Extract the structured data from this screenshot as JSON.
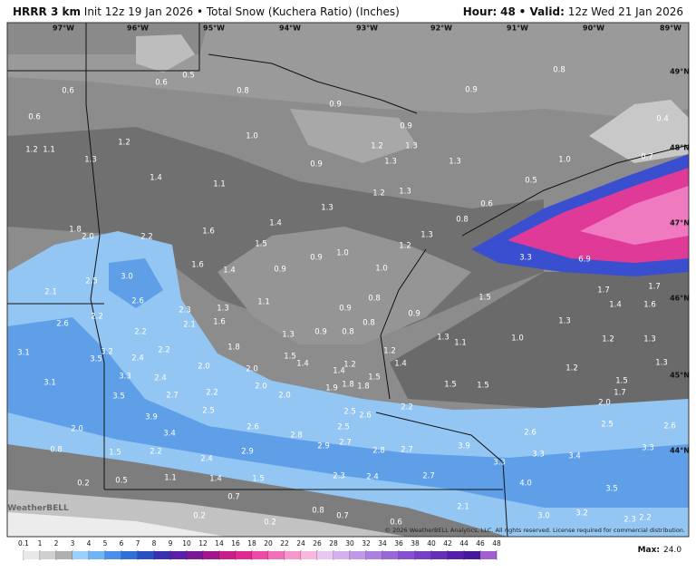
{
  "header": {
    "model": "HRRR 3 km",
    "init": "Init 12z 19 Jan 2026",
    "product": "• Total Snow (Kuchera Ratio) (Inches)",
    "hour_label": "Hour:",
    "hour": "48",
    "valid_label": "• Valid:",
    "valid": "12z Wed 21 Jan 2026"
  },
  "map": {
    "longitudes": [
      "97°W",
      "96°W",
      "95°W",
      "94°W",
      "93°W",
      "92°W",
      "91°W",
      "90°W",
      "89°W"
    ],
    "latitudes": [
      "49°N",
      "48°N",
      "47°N",
      "46°N",
      "45°N",
      "44°N"
    ],
    "labels": [
      "0.6",
      "0.6",
      "0.5",
      "0.8",
      "0.9",
      "0.9",
      "0.8",
      "0.4",
      "0.6",
      "0.9",
      "1.0",
      "1.2",
      "1.1",
      "1.2",
      "1.3",
      "1.2",
      "1.3",
      "1.0",
      "0.7",
      "0.9",
      "1.3",
      "1.3",
      "1.4",
      "1.1",
      "0.5",
      "1.2",
      "1.3",
      "1.3",
      "0.6",
      "0.8",
      "1.4",
      "1.8",
      "2.0",
      "2.2",
      "1.6",
      "1.5",
      "1.3",
      "1.2",
      "0.9",
      "1.0",
      "3.3",
      "6.9",
      "1.6",
      "1.4",
      "0.9",
      "1.0",
      "3.0",
      "2.5",
      "2.1",
      "1.7",
      "1.7",
      "2.6",
      "1.1",
      "0.8",
      "1.5",
      "1.4",
      "1.6",
      "2.3",
      "1.3",
      "0.9",
      "0.9",
      "2.2",
      "2.1",
      "1.6",
      "0.8",
      "1.3",
      "2.6",
      "2.2",
      "1.3",
      "0.9",
      "0.8",
      "1.3",
      "1.1",
      "1.0",
      "1.2",
      "1.3",
      "2.2",
      "1.8",
      "3.2",
      "3.1",
      "3.5",
      "2.4",
      "1.5",
      "1.4",
      "1.2",
      "1.2",
      "1.4",
      "1.4",
      "2.0",
      "2.0",
      "3.3",
      "2.4",
      "1.5",
      "1.2",
      "1.3",
      "3.1",
      "1.9",
      "1.8",
      "1.8",
      "1.5",
      "1.5",
      "1.5",
      "2.0",
      "2.0",
      "1.7",
      "3.5",
      "2.7",
      "2.2",
      "2.0",
      "2.2",
      "2.5",
      "2.5",
      "2.6",
      "3.9",
      "2.0",
      "2.6",
      "2.5",
      "3.4",
      "2.8",
      "2.6",
      "2.5",
      "2.6",
      "2.7",
      "2.9",
      "3.9",
      "0.8",
      "1.5",
      "2.2",
      "2.9",
      "2.8",
      "2.7",
      "3.3",
      "3.4",
      "3.3",
      "2.4",
      "3.3",
      "0.2",
      "0.5",
      "1.1",
      "1.4",
      "1.5",
      "2.3",
      "2.4",
      "2.7",
      "4.0",
      "3.5",
      "0.7",
      "2.1",
      "0.8",
      "0.7",
      "0.2",
      "0.2",
      "0.6",
      "3.0",
      "3.2",
      "2.3",
      "2.2"
    ],
    "logo": "WeatherBELL",
    "copyright": "© 2026 WeatherBELL Analytics, LLC. All rights reserved. License required for commercial distribution."
  },
  "legend": {
    "ticks": [
      0.1,
      1,
      2,
      3,
      4,
      5,
      6,
      7,
      8,
      9,
      10,
      12,
      14,
      16,
      18,
      20,
      22,
      24,
      26,
      28,
      30,
      32,
      34,
      36,
      38,
      40,
      42,
      44,
      46,
      48
    ],
    "max_label": "Max:",
    "max": "24.0"
  }
}
